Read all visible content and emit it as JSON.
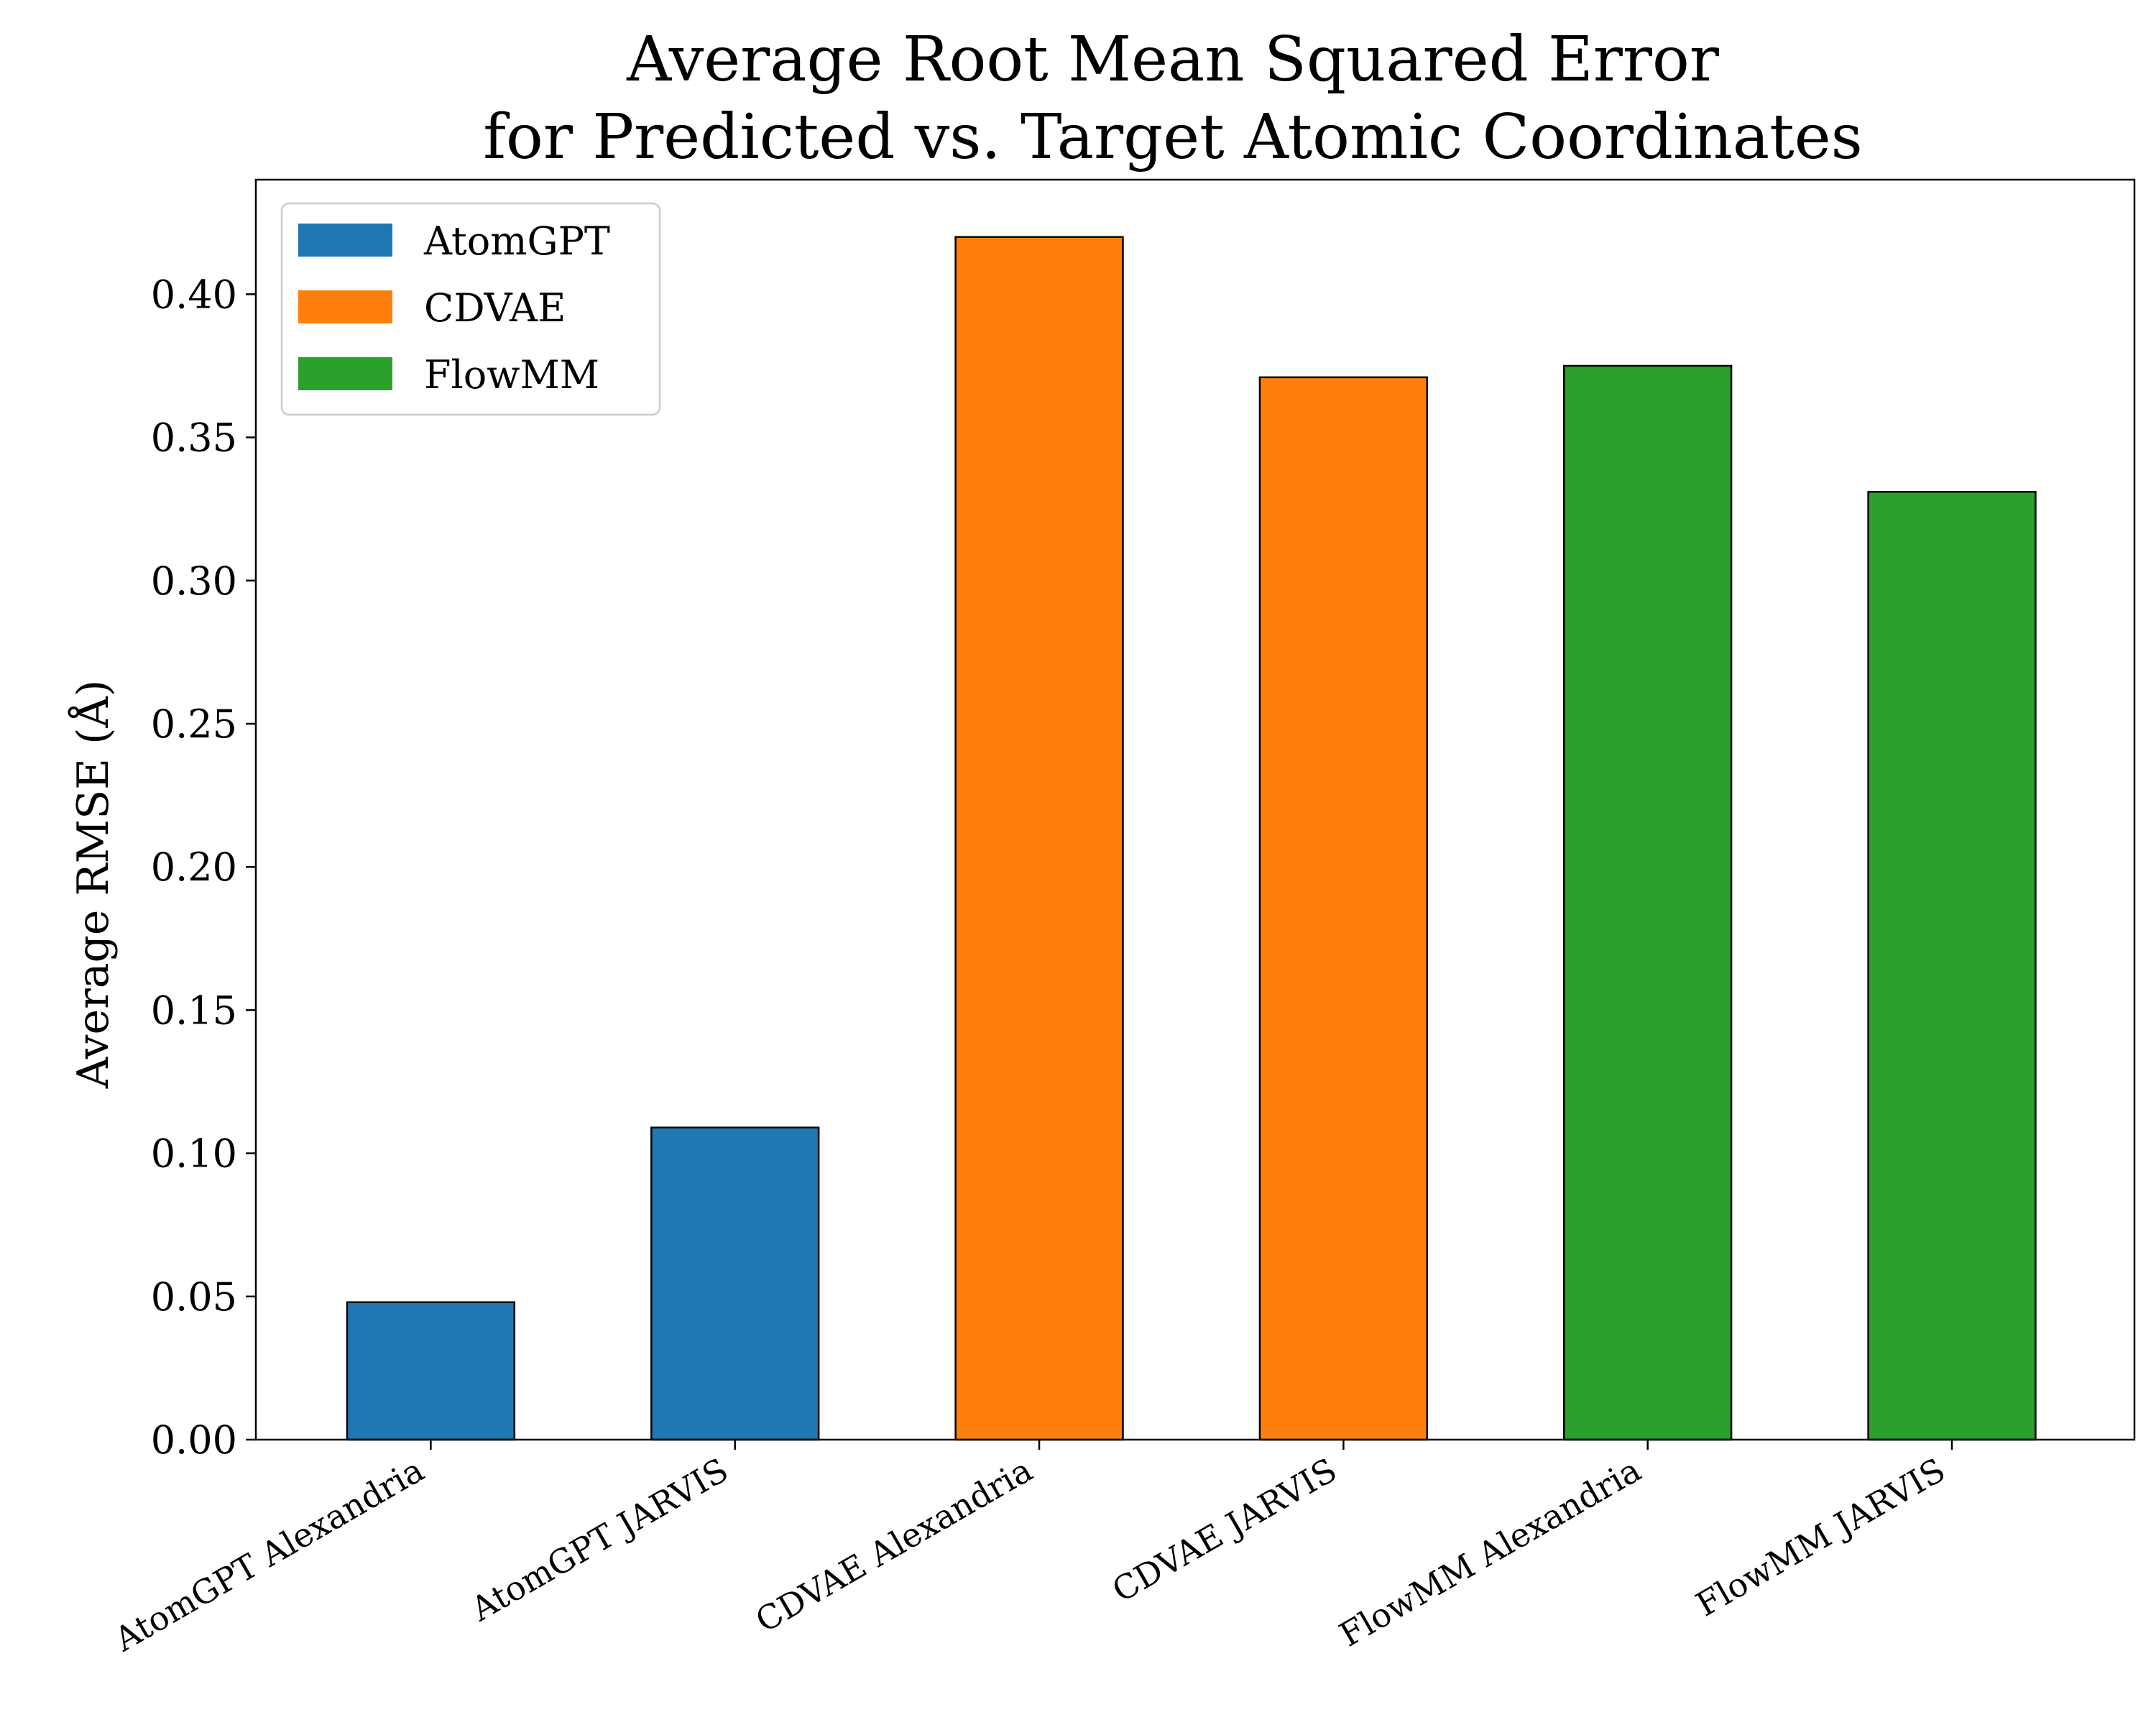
{
  "chart_data": {
    "type": "bar",
    "title_lines": [
      "Average Root Mean Squared Error",
      "for Predicted vs. Target Atomic Coordinates"
    ],
    "xlabel": "",
    "ylabel": "Average RMSE (Å)",
    "ylim": [
      0,
      0.44
    ],
    "yticks": [
      0.0,
      0.05,
      0.1,
      0.15,
      0.2,
      0.25,
      0.3,
      0.35,
      0.4
    ],
    "ytick_labels": [
      "0.00",
      "0.05",
      "0.10",
      "0.15",
      "0.20",
      "0.25",
      "0.30",
      "0.35",
      "0.40"
    ],
    "grid": false,
    "legend_position": "top-left",
    "categories": [
      "AtomGPT Alexandria",
      "AtomGPT JARVIS",
      "CDVAE Alexandria",
      "CDVAE JARVIS",
      "FlowMM Alexandria",
      "FlowMM JARVIS"
    ],
    "values": [
      0.048,
      0.109,
      0.42,
      0.371,
      0.375,
      0.331
    ],
    "bar_series": [
      "AtomGPT",
      "AtomGPT",
      "CDVAE",
      "CDVAE",
      "FlowMM",
      "FlowMM"
    ],
    "series": [
      {
        "name": "AtomGPT",
        "color": "#1f77b4"
      },
      {
        "name": "CDVAE",
        "color": "#ff7f0e"
      },
      {
        "name": "FlowMM",
        "color": "#2ca02c"
      }
    ]
  }
}
